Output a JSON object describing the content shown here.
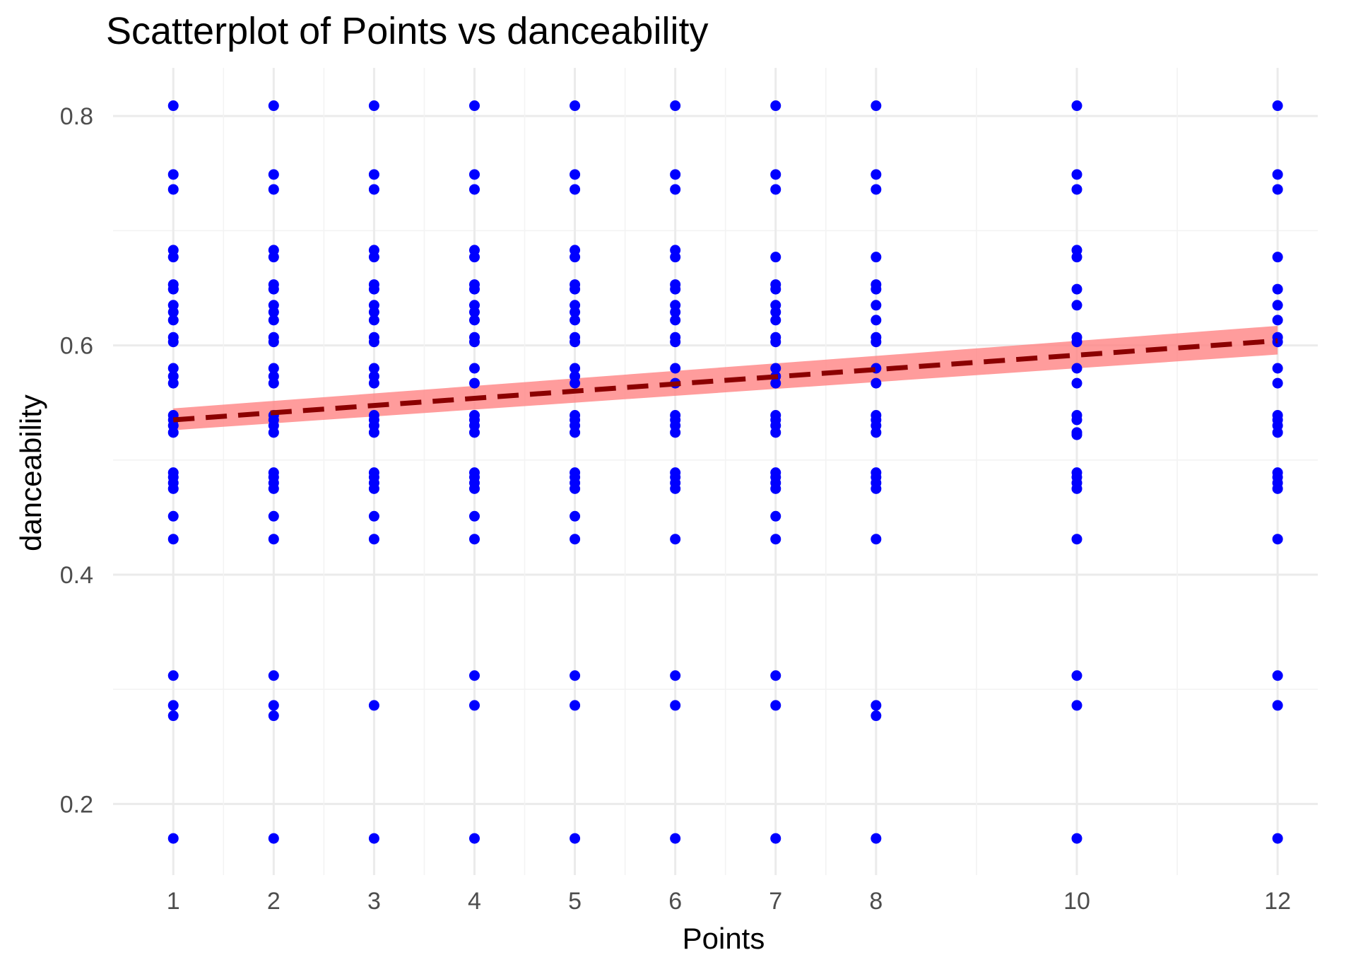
{
  "chart_data": {
    "type": "scatter",
    "title": "Scatterplot of Points vs  danceability",
    "xlabel": "Points",
    "ylabel": "danceability",
    "xlim": [
      0.4,
      12.4
    ],
    "ylim": [
      0.138,
      0.842
    ],
    "x_ticks": [
      1,
      2,
      3,
      4,
      5,
      6,
      7,
      8,
      10,
      12
    ],
    "x_tick_labels": [
      "1",
      "2",
      "3",
      "4",
      "5",
      "6",
      "7",
      "8",
      "10",
      "12"
    ],
    "y_ticks": [
      0.2,
      0.4,
      0.6,
      0.8
    ],
    "y_tick_labels": [
      "0.2",
      "0.4",
      "0.6",
      "0.8"
    ],
    "grid": true,
    "colors": {
      "points": "#0000ff",
      "trend_line": "#8b0000",
      "confidence_band": "#ff8080"
    },
    "points": [
      {
        "x": 1,
        "y": [
          0.809,
          0.749,
          0.736,
          0.683,
          0.677,
          0.653,
          0.649,
          0.635,
          0.629,
          0.622,
          0.607,
          0.603,
          0.58,
          0.573,
          0.567,
          0.539,
          0.535,
          0.53,
          0.524,
          0.489,
          0.485,
          0.48,
          0.475,
          0.451,
          0.431,
          0.312,
          0.286,
          0.277,
          0.17
        ]
      },
      {
        "x": 2,
        "y": [
          0.809,
          0.749,
          0.736,
          0.683,
          0.677,
          0.653,
          0.649,
          0.635,
          0.629,
          0.622,
          0.607,
          0.603,
          0.58,
          0.573,
          0.567,
          0.539,
          0.535,
          0.53,
          0.524,
          0.489,
          0.485,
          0.48,
          0.475,
          0.451,
          0.431,
          0.312,
          0.286,
          0.277,
          0.17
        ]
      },
      {
        "x": 3,
        "y": [
          0.809,
          0.749,
          0.736,
          0.683,
          0.677,
          0.653,
          0.649,
          0.635,
          0.629,
          0.622,
          0.607,
          0.603,
          0.58,
          0.573,
          0.567,
          0.539,
          0.535,
          0.53,
          0.524,
          0.489,
          0.485,
          0.48,
          0.475,
          0.451,
          0.431,
          0.286,
          0.17
        ]
      },
      {
        "x": 4,
        "y": [
          0.809,
          0.749,
          0.736,
          0.683,
          0.677,
          0.653,
          0.649,
          0.635,
          0.629,
          0.622,
          0.607,
          0.603,
          0.58,
          0.567,
          0.539,
          0.535,
          0.53,
          0.524,
          0.489,
          0.485,
          0.48,
          0.475,
          0.451,
          0.431,
          0.312,
          0.286,
          0.17
        ]
      },
      {
        "x": 5,
        "y": [
          0.809,
          0.749,
          0.736,
          0.683,
          0.677,
          0.653,
          0.649,
          0.635,
          0.629,
          0.622,
          0.607,
          0.603,
          0.58,
          0.573,
          0.567,
          0.539,
          0.535,
          0.53,
          0.524,
          0.489,
          0.485,
          0.48,
          0.475,
          0.451,
          0.431,
          0.312,
          0.286,
          0.17
        ]
      },
      {
        "x": 6,
        "y": [
          0.809,
          0.749,
          0.736,
          0.683,
          0.677,
          0.653,
          0.649,
          0.635,
          0.629,
          0.622,
          0.607,
          0.603,
          0.58,
          0.567,
          0.539,
          0.535,
          0.53,
          0.524,
          0.489,
          0.485,
          0.48,
          0.475,
          0.431,
          0.312,
          0.286,
          0.17
        ]
      },
      {
        "x": 7,
        "y": [
          0.809,
          0.749,
          0.736,
          0.677,
          0.653,
          0.649,
          0.635,
          0.629,
          0.622,
          0.607,
          0.603,
          0.58,
          0.573,
          0.567,
          0.539,
          0.535,
          0.53,
          0.524,
          0.489,
          0.485,
          0.48,
          0.475,
          0.451,
          0.431,
          0.312,
          0.286,
          0.17
        ]
      },
      {
        "x": 8,
        "y": [
          0.809,
          0.749,
          0.736,
          0.677,
          0.653,
          0.649,
          0.635,
          0.622,
          0.607,
          0.603,
          0.58,
          0.567,
          0.539,
          0.535,
          0.53,
          0.524,
          0.489,
          0.485,
          0.48,
          0.475,
          0.431,
          0.286,
          0.277,
          0.17
        ]
      },
      {
        "x": 10,
        "y": [
          0.809,
          0.749,
          0.736,
          0.683,
          0.677,
          0.649,
          0.635,
          0.607,
          0.603,
          0.58,
          0.567,
          0.539,
          0.535,
          0.524,
          0.522,
          0.489,
          0.485,
          0.48,
          0.475,
          0.431,
          0.312,
          0.286,
          0.17
        ]
      },
      {
        "x": 12,
        "y": [
          0.809,
          0.749,
          0.736,
          0.677,
          0.649,
          0.635,
          0.622,
          0.607,
          0.603,
          0.58,
          0.567,
          0.539,
          0.535,
          0.53,
          0.524,
          0.489,
          0.485,
          0.48,
          0.475,
          0.431,
          0.312,
          0.286,
          0.17
        ]
      }
    ],
    "trend_line": {
      "style": "dashed",
      "x": [
        1,
        12
      ],
      "y": [
        0.535,
        0.604
      ]
    },
    "confidence_band": {
      "x": [
        1,
        12
      ],
      "lower": [
        0.526,
        0.592
      ],
      "upper": [
        0.545,
        0.617
      ]
    }
  }
}
